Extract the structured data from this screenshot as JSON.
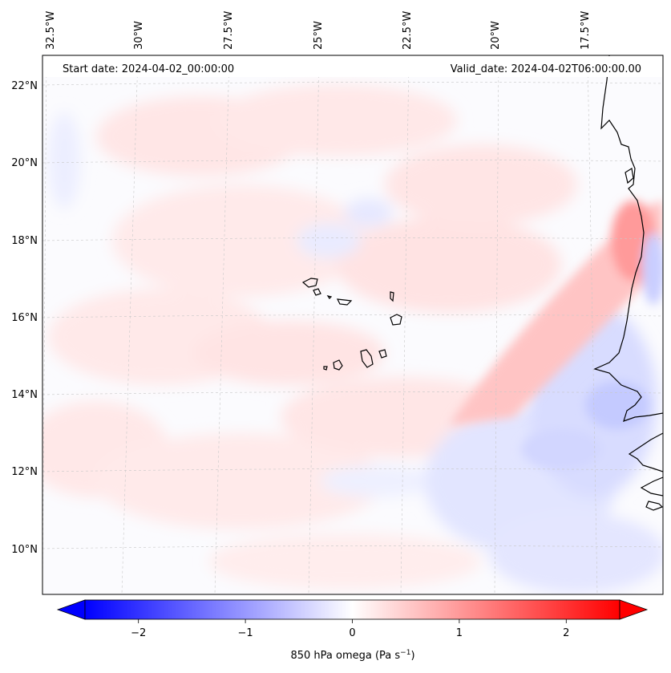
{
  "header": {
    "start_label": "Start date: 2024-04-02_00:00:00",
    "valid_label": "Valid_date: 2024-04-02T06:00:00.00"
  },
  "map": {
    "lon_labels": [
      "32.5°W",
      "30°W",
      "27.5°W",
      "25°W",
      "22.5°W",
      "20°W",
      "17.5°W"
    ],
    "lat_labels": [
      "22°N",
      "20°N",
      "18°N",
      "16°N",
      "14°N",
      "12°N",
      "10°N"
    ],
    "gridlines": true,
    "features": [
      "Cape Verde islands",
      "West African coastline"
    ],
    "colors": {
      "positive": "#ff0000",
      "negative": "#0000ff",
      "zero": "#ffffff",
      "coast": "#000000"
    }
  },
  "colorbar": {
    "label_prefix": "850 hPa omega (Pa s",
    "label_exponent": "−1",
    "label_suffix": ")",
    "ticks": [
      "−2",
      "−1",
      "0",
      "1",
      "2"
    ],
    "tick_values": [
      -2,
      -1,
      0,
      1,
      2
    ],
    "range": [
      -2.5,
      2.5
    ],
    "colormap": "bwr",
    "extend": "both"
  }
}
